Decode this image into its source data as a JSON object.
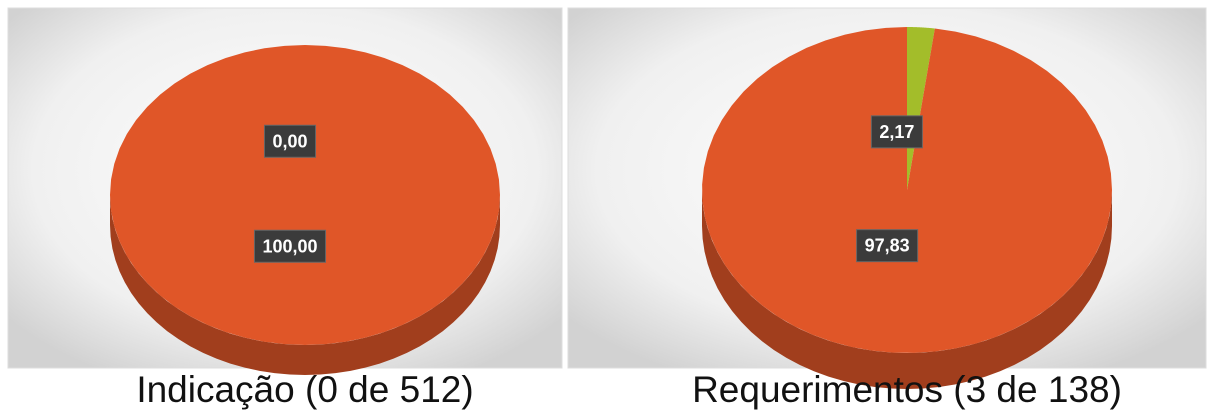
{
  "chart_data": [
    {
      "type": "pie",
      "title": "Indicação (0 de 512)",
      "values": [
        0,
        100
      ],
      "value_labels": [
        "0,00",
        "100,00"
      ],
      "colors": [
        "#a3bd2a",
        "#e05628"
      ]
    },
    {
      "type": "pie",
      "title": "Requerimentos (3 de 138)",
      "values": [
        2.17,
        97.83
      ],
      "value_labels": [
        "2,17",
        "97,83"
      ],
      "colors": [
        "#a3bd2a",
        "#e05628"
      ]
    }
  ]
}
